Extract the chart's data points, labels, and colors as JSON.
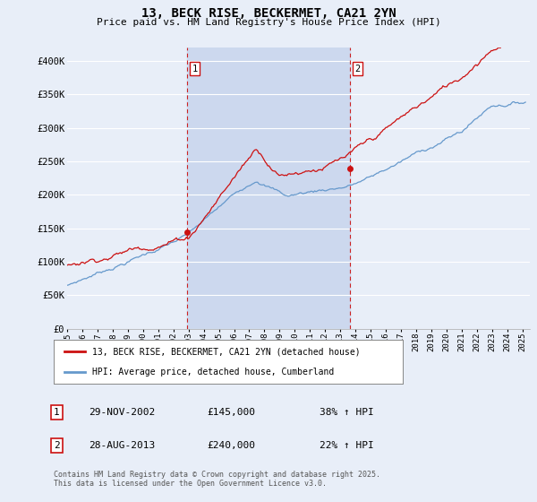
{
  "title": "13, BECK RISE, BECKERMET, CA21 2YN",
  "subtitle": "Price paid vs. HM Land Registry's House Price Index (HPI)",
  "xlim_start": 1995.0,
  "xlim_end": 2025.5,
  "ylim": [
    0,
    420000
  ],
  "yticks": [
    0,
    50000,
    100000,
    150000,
    200000,
    250000,
    300000,
    350000,
    400000
  ],
  "ytick_labels": [
    "£0",
    "£50K",
    "£100K",
    "£150K",
    "£200K",
    "£250K",
    "£300K",
    "£350K",
    "£400K"
  ],
  "xtick_years": [
    1995,
    1996,
    1997,
    1998,
    1999,
    2000,
    2001,
    2002,
    2003,
    2004,
    2005,
    2006,
    2007,
    2008,
    2009,
    2010,
    2011,
    2012,
    2013,
    2014,
    2015,
    2016,
    2017,
    2018,
    2019,
    2020,
    2021,
    2022,
    2023,
    2024,
    2025
  ],
  "sale1_x": 2002.91,
  "sale1_y": 145000,
  "sale1_label": "1",
  "sale2_x": 2013.65,
  "sale2_y": 240000,
  "sale2_label": "2",
  "vline1_x": 2002.91,
  "vline2_x": 2013.65,
  "vline_color": "#cc2222",
  "background_color": "#e8eef8",
  "plot_bg_color": "#e8eef8",
  "shade_color": "#ccd8ee",
  "grid_color": "#ffffff",
  "hpi_line_color": "#6699cc",
  "price_line_color": "#cc1111",
  "legend_entry1": "13, BECK RISE, BECKERMET, CA21 2YN (detached house)",
  "legend_entry2": "HPI: Average price, detached house, Cumberland",
  "note1_label": "1",
  "note1_date": "29-NOV-2002",
  "note1_price": "£145,000",
  "note1_hpi": "38% ↑ HPI",
  "note2_label": "2",
  "note2_date": "28-AUG-2013",
  "note2_price": "£240,000",
  "note2_hpi": "22% ↑ HPI",
  "footer": "Contains HM Land Registry data © Crown copyright and database right 2025.\nThis data is licensed under the Open Government Licence v3.0."
}
